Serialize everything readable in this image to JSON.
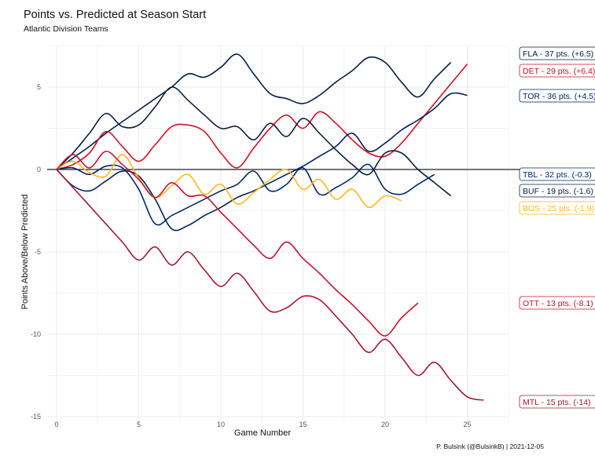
{
  "chart_data": {
    "type": "line",
    "title": "Points vs. Predicted at Season Start",
    "subtitle": "Atlantic Division Teams",
    "xlabel": "Game Number",
    "ylabel": "Points Above/Below Predicted",
    "caption": "P. Bulsink (@BulsinkB) | 2021-12-05",
    "xlim": [
      -1.5,
      27.5
    ],
    "ylim": [
      -15,
      7.5
    ],
    "x_ticks": [
      0,
      5,
      10,
      15,
      20,
      25
    ],
    "y_ticks": [
      5,
      0,
      -5,
      -10,
      -15
    ],
    "grid": true,
    "reference_line": 0,
    "series": [
      {
        "name": "FLA",
        "label": "FLA - 37 pts. (+6.5)",
        "color": "#041E42",
        "values": [
          0,
          0.7,
          1.4,
          2.2,
          2.9,
          3.6,
          4.3,
          5.0,
          5.8,
          5.6,
          6.2,
          7.0,
          5.8,
          4.6,
          4.3,
          4.0,
          4.5,
          5.3,
          6.0,
          6.8,
          6.5,
          5.3,
          4.4,
          5.5,
          6.5
        ]
      },
      {
        "name": "DET",
        "label": "DET - 29 pts. (+6.4)",
        "color": "#CE1126",
        "values": [
          0,
          0.3,
          1.0,
          2.3,
          1.4,
          0.5,
          1.5,
          2.6,
          2.7,
          2.3,
          1.0,
          0.1,
          1.3,
          2.5,
          3.3,
          2.5,
          3.5,
          2.8,
          1.8,
          1.0,
          0.8,
          1.6,
          2.8,
          4.0,
          5.2,
          6.4
        ]
      },
      {
        "name": "TOR",
        "label": "TOR - 36 pts. (+4.5)",
        "color": "#00205B",
        "values": [
          0,
          -1.0,
          -1.3,
          -0.7,
          -0.1,
          -0.4,
          -1.8,
          -3.6,
          -3.4,
          -2.8,
          -2.3,
          -1.7,
          -1.3,
          -0.8,
          -0.3,
          0.2,
          0.8,
          1.4,
          2.2,
          1.1,
          1.6,
          2.4,
          3.0,
          3.7,
          4.6,
          4.5
        ]
      },
      {
        "name": "TBL",
        "label": "TBL - 32 pts. (-0.3)",
        "color": "#002868",
        "values": [
          0,
          0.1,
          -0.3,
          0.2,
          0.1,
          -1.2,
          -3.3,
          -2.8,
          -2.3,
          -1.8,
          -1.3,
          -0.9,
          -0.1,
          -1.3,
          -0.9,
          0.1,
          -1.5,
          -1.1,
          -0.5,
          0.3,
          -1.2,
          -1.5,
          -0.9,
          -0.3
        ]
      },
      {
        "name": "BUF",
        "label": "BUF - 19 pts. (-1.6)",
        "color": "#0B1F3F",
        "values": [
          0,
          1.0,
          2.2,
          3.4,
          2.6,
          2.7,
          3.8,
          5.0,
          4.2,
          3.3,
          2.5,
          2.6,
          1.8,
          2.8,
          2.0,
          3.1,
          2.2,
          1.2,
          0.3,
          -0.3,
          1.0,
          1.0,
          0.0,
          -0.8,
          -1.6
        ]
      },
      {
        "name": "BOS",
        "label": "BOS - 25 pts. (-1.9)",
        "color": "#FFB81C",
        "values": [
          0,
          0.5,
          -0.2,
          -0.4,
          0.9,
          -0.5,
          -1.7,
          -1.0,
          -0.3,
          -1.5,
          -0.9,
          -2.1,
          -1.4,
          -0.6,
          0.0,
          -1.2,
          -0.6,
          -1.8,
          -1.2,
          -2.3,
          -1.6,
          -1.9
        ]
      },
      {
        "name": "OTT",
        "label": "OTT - 13 pts. (-8.1)",
        "color": "#C8102E",
        "values": [
          0,
          0.9,
          0.1,
          1.1,
          0.3,
          -0.6,
          -1.7,
          -0.8,
          -1.6,
          -1.6,
          -2.6,
          -3.6,
          -4.6,
          -5.4,
          -4.4,
          -5.4,
          -6.3,
          -7.3,
          -8.2,
          -9.2,
          -10.1,
          -9.0,
          -8.1
        ]
      },
      {
        "name": "MTL",
        "label": "MTL - 15 pts. (-14)",
        "color": "#A6192E",
        "values": [
          0,
          -1.1,
          -2.2,
          -3.3,
          -4.4,
          -5.5,
          -4.7,
          -5.8,
          -5.0,
          -6.1,
          -7.1,
          -6.3,
          -7.4,
          -8.6,
          -8.4,
          -7.7,
          -7.9,
          -8.9,
          -10.0,
          -11.1,
          -10.3,
          -11.4,
          -12.5,
          -11.7,
          -12.8,
          -13.8,
          -14.0
        ]
      }
    ],
    "label_order": [
      "FLA",
      "DET",
      "TOR",
      "TBL",
      "BUF",
      "BOS",
      "OTT",
      "MTL"
    ]
  }
}
